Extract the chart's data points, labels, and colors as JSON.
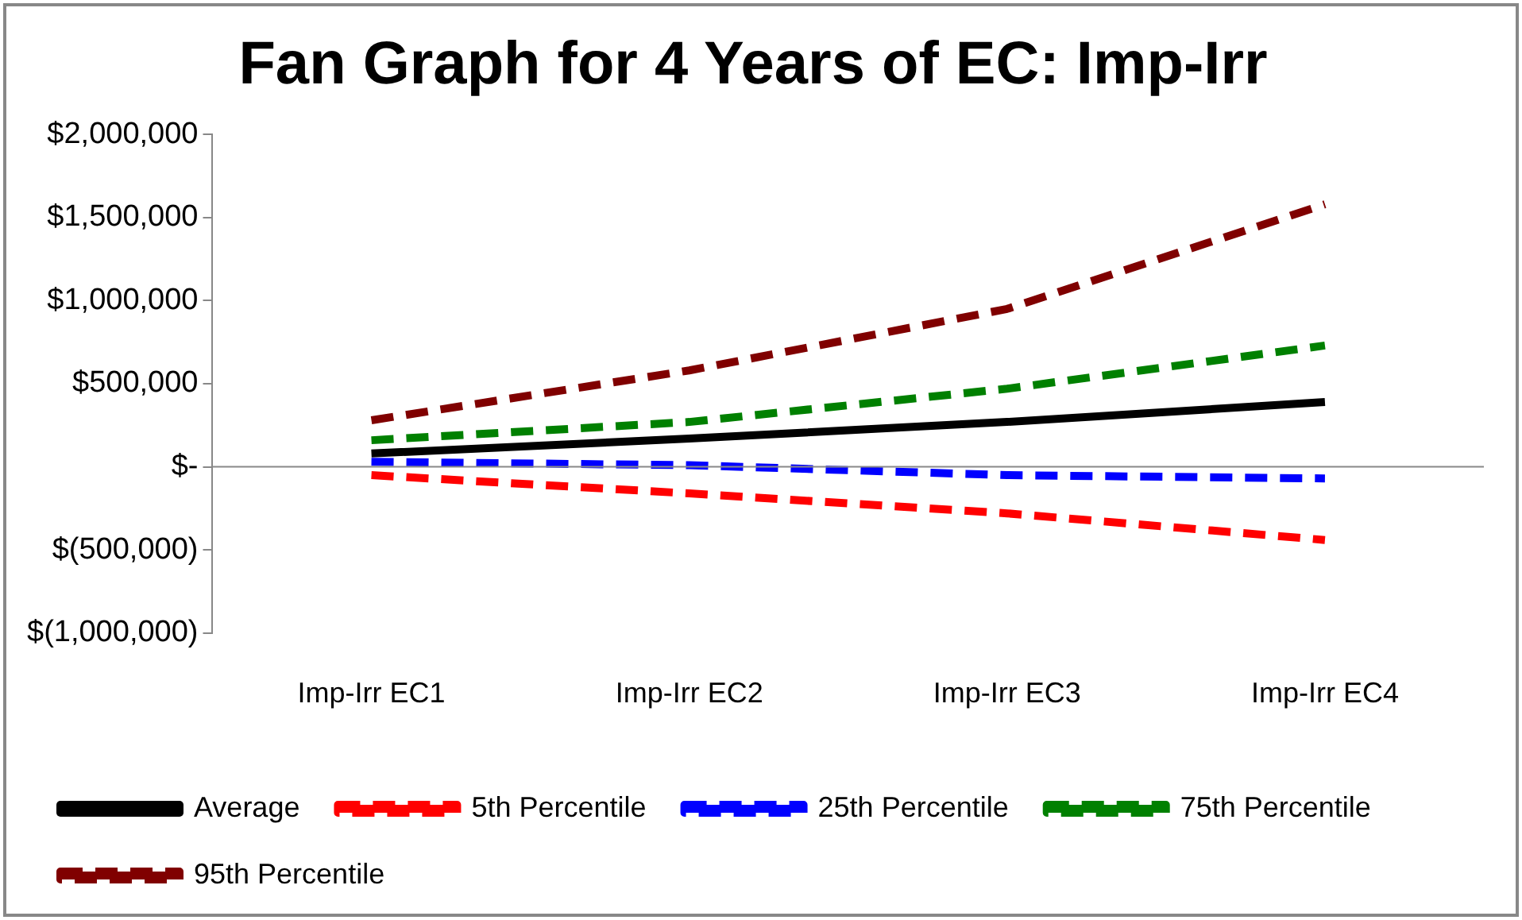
{
  "chart_data": {
    "type": "line",
    "title": "Fan Graph for 4 Years of EC: Imp-Irr",
    "categories": [
      "Imp-Irr EC1",
      "Imp-Irr EC2",
      "Imp-Irr EC3",
      "Imp-Irr EC4"
    ],
    "series": [
      {
        "name": "Average",
        "color": "#000000",
        "line_style": "solid",
        "values": [
          80000,
          170000,
          270000,
          390000
        ]
      },
      {
        "name": "5th Percentile",
        "color": "#ff0000",
        "line_style": "dashed",
        "values": [
          -50000,
          -160000,
          -280000,
          -440000
        ]
      },
      {
        "name": "25th Percentile",
        "color": "#0000ff",
        "line_style": "dashed",
        "values": [
          30000,
          10000,
          -50000,
          -70000
        ]
      },
      {
        "name": "75th Percentile",
        "color": "#008000",
        "line_style": "dashed",
        "values": [
          160000,
          270000,
          470000,
          730000
        ]
      },
      {
        "name": "95th Percentile",
        "color": "#800000",
        "line_style": "dashed",
        "values": [
          280000,
          580000,
          950000,
          1580000
        ]
      }
    ],
    "ylim": [
      -1000000,
      2000000
    ],
    "yticks": [
      {
        "value": -1000000,
        "label": "$(1,000,000)"
      },
      {
        "value": -500000,
        "label": "$(500,000)"
      },
      {
        "value": 0,
        "label": "$-"
      },
      {
        "value": 500000,
        "label": "$500,000"
      },
      {
        "value": 1000000,
        "label": "$1,000,000"
      },
      {
        "value": 1500000,
        "label": "$1,500,000"
      },
      {
        "value": 2000000,
        "label": "$2,000,000"
      }
    ],
    "ref_lines": [
      {
        "axis": "y",
        "value": 0,
        "color": "#888888"
      }
    ],
    "marker": "none",
    "grid": false,
    "legend": "bottom"
  }
}
